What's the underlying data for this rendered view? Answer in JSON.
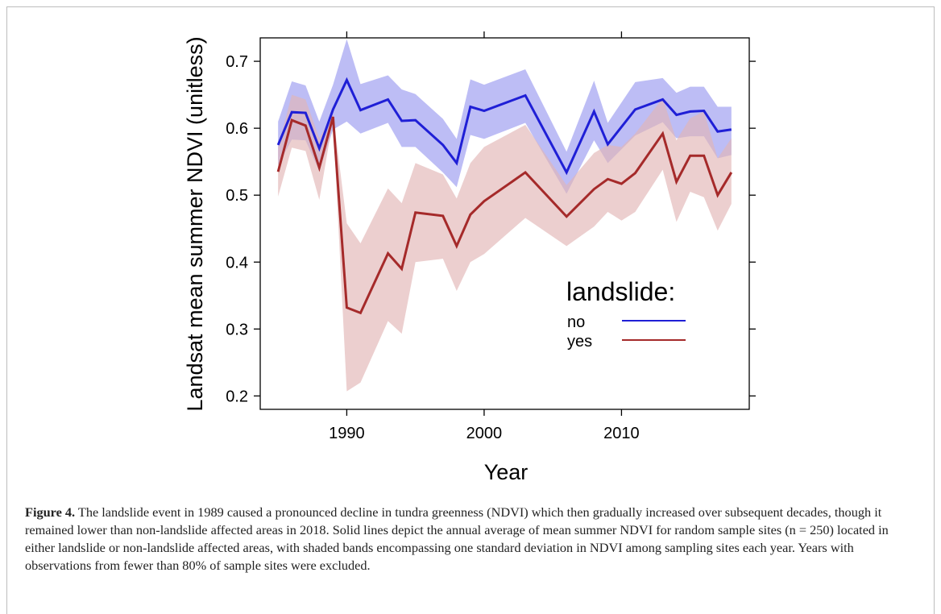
{
  "chart_data": {
    "type": "line",
    "title": "",
    "xlabel": "Year",
    "ylabel": "Landsat mean summer NDVI (unitless)",
    "xlim": [
      1983.7,
      2019.3
    ],
    "ylim": [
      0.18,
      0.735
    ],
    "x_ticks": [
      1990,
      2000,
      2010
    ],
    "y_ticks": [
      0.2,
      0.3,
      0.4,
      0.5,
      0.6,
      0.7
    ],
    "legend": {
      "title": "landslide:",
      "placement": "right"
    },
    "series": [
      {
        "name": "no",
        "color": "#1f1fd6",
        "band_color": "#9a9af0",
        "x": [
          1985,
          1986,
          1987,
          1988,
          1989,
          1990,
          1991,
          1993,
          1994,
          1995,
          1997,
          1998,
          1999,
          2000,
          2003,
          2006,
          2008,
          2009,
          2011,
          2013,
          2014,
          2015,
          2016,
          2017,
          2018
        ],
        "y": [
          0.575,
          0.624,
          0.623,
          0.57,
          0.628,
          0.672,
          0.627,
          0.643,
          0.611,
          0.612,
          0.575,
          0.548,
          0.632,
          0.626,
          0.649,
          0.534,
          0.625,
          0.576,
          0.628,
          0.643,
          0.62,
          0.625,
          0.626,
          0.595,
          0.598
        ],
        "lower": [
          0.545,
          0.583,
          0.582,
          0.536,
          0.598,
          0.61,
          0.592,
          0.608,
          0.572,
          0.572,
          0.534,
          0.512,
          0.59,
          0.584,
          0.608,
          0.502,
          0.582,
          0.548,
          0.589,
          0.609,
          0.585,
          0.588,
          0.588,
          0.555,
          0.56
        ],
        "upper": [
          0.61,
          0.67,
          0.664,
          0.61,
          0.665,
          0.733,
          0.666,
          0.679,
          0.658,
          0.651,
          0.614,
          0.584,
          0.673,
          0.665,
          0.688,
          0.565,
          0.671,
          0.608,
          0.669,
          0.675,
          0.653,
          0.662,
          0.662,
          0.632,
          0.632
        ]
      },
      {
        "name": "yes",
        "color": "#a52a2a",
        "band_color": "#e2b5b5",
        "x": [
          1985,
          1986,
          1987,
          1988,
          1989,
          1990,
          1991,
          1993,
          1994,
          1995,
          1997,
          1998,
          1999,
          2000,
          2003,
          2006,
          2008,
          2009,
          2010,
          2011,
          2013,
          2014,
          2015,
          2016,
          2017,
          2018
        ],
        "y": [
          0.535,
          0.612,
          0.604,
          0.541,
          0.617,
          0.332,
          0.324,
          0.413,
          0.39,
          0.474,
          0.469,
          0.424,
          0.471,
          0.491,
          0.534,
          0.468,
          0.509,
          0.524,
          0.517,
          0.533,
          0.592,
          0.52,
          0.559,
          0.559,
          0.5,
          0.534
        ],
        "lower": [
          0.498,
          0.571,
          0.566,
          0.493,
          0.612,
          0.207,
          0.22,
          0.312,
          0.293,
          0.4,
          0.405,
          0.357,
          0.4,
          0.412,
          0.466,
          0.424,
          0.453,
          0.475,
          0.462,
          0.475,
          0.538,
          0.46,
          0.505,
          0.497,
          0.447,
          0.487
        ],
        "upper": [
          0.572,
          0.65,
          0.643,
          0.585,
          0.622,
          0.458,
          0.428,
          0.51,
          0.488,
          0.548,
          0.531,
          0.495,
          0.548,
          0.572,
          0.605,
          0.515,
          0.563,
          0.575,
          0.572,
          0.592,
          0.645,
          0.582,
          0.615,
          0.625,
          0.555,
          0.585
        ]
      }
    ]
  },
  "caption": {
    "label": "Figure 4.",
    "text": " The landslide event in 1989 caused a pronounced decline in tundra greenness (NDVI) which then gradually increased over subsequent decades, though it remained lower than non-landslide affected areas in 2018. Solid lines depict the annual average of mean summer NDVI for random sample sites (n = 250) located in either landslide or non-landslide affected areas, with shaded bands encompassing one standard deviation in NDVI among sampling sites each year. Years with observations from fewer than 80% of sample sites were excluded."
  }
}
